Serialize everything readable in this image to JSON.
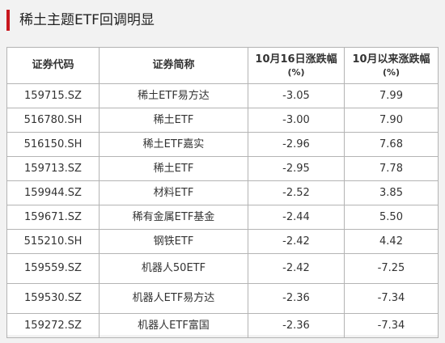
{
  "title": "稀土主题ETF回调明显",
  "colors": {
    "accent": "#c8161d",
    "border": "#b4b4b4",
    "background": "#f2f2f2"
  },
  "table": {
    "headers": {
      "code": "证券代码",
      "name": "证券简称",
      "change_day": "10月16日涨跌幅",
      "change_day_unit": "(%)",
      "change_month": "10月以来涨跌幅",
      "change_month_unit": "(%)"
    },
    "rows": [
      {
        "code": "159715.SZ",
        "name": "稀土ETF易方达",
        "day": "-3.05",
        "month": "7.99"
      },
      {
        "code": "516780.SH",
        "name": "稀土ETF",
        "day": "-3.00",
        "month": "7.90"
      },
      {
        "code": "516150.SH",
        "name": "稀土ETF嘉实",
        "day": "-2.96",
        "month": "7.68"
      },
      {
        "code": "159713.SZ",
        "name": "稀土ETF",
        "day": "-2.95",
        "month": "7.78"
      },
      {
        "code": "159944.SZ",
        "name": "材料ETF",
        "day": "-2.52",
        "month": "3.85"
      },
      {
        "code": "159671.SZ",
        "name": "稀有金属ETF基金",
        "day": "-2.44",
        "month": "5.50"
      },
      {
        "code": "515210.SH",
        "name": "钢铁ETF",
        "day": "-2.42",
        "month": "4.42"
      },
      {
        "code": "159559.SZ",
        "name": "机器人50ETF",
        "day": "-2.42",
        "month": "-7.25"
      },
      {
        "code": "159530.SZ",
        "name": "机器人ETF易方达",
        "day": "-2.36",
        "month": "-7.34"
      },
      {
        "code": "159272.SZ",
        "name": "机器人ETF富国",
        "day": "-2.36",
        "month": "-7.34"
      }
    ]
  }
}
